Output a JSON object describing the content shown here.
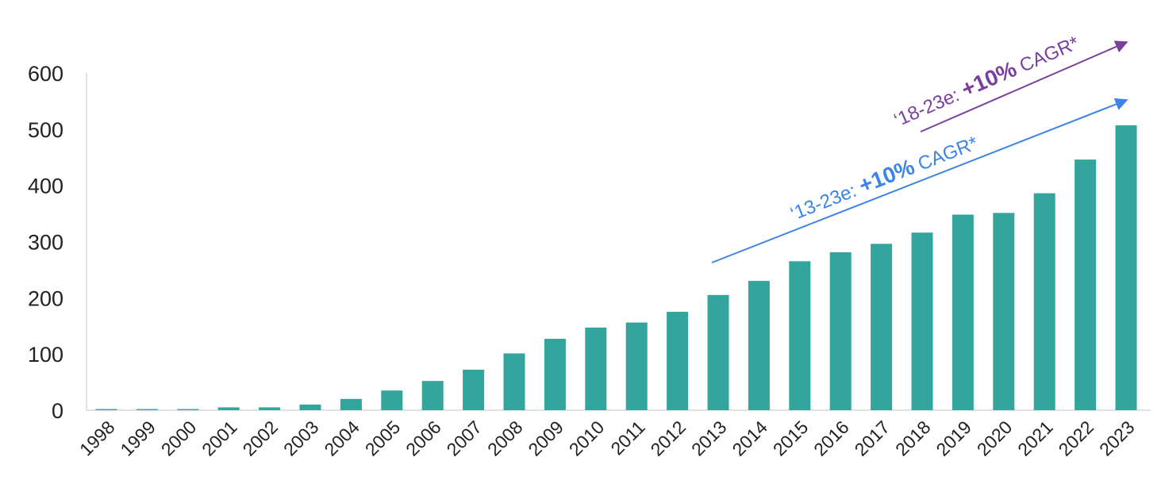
{
  "chart_data": {
    "type": "bar",
    "categories": [
      "1998",
      "1999",
      "2000",
      "2001",
      "2002",
      "2003",
      "2004",
      "2005",
      "2006",
      "2007",
      "2008",
      "2009",
      "2010",
      "2011",
      "2012",
      "2013",
      "2014",
      "2015",
      "2016",
      "2017",
      "2018",
      "2019",
      "2020",
      "2021",
      "2022",
      "2023"
    ],
    "values": [
      2,
      2,
      2,
      5,
      5,
      10,
      20,
      35,
      52,
      72,
      101,
      127,
      147,
      156,
      175,
      205,
      230,
      265,
      281,
      296,
      316,
      348,
      351,
      386,
      446,
      507
    ],
    "ylim": [
      0,
      600
    ],
    "yticks": [
      "0",
      "100",
      "200",
      "300",
      "400",
      "500",
      "600"
    ],
    "grid": false,
    "bar_color": "#34a59c",
    "annotations": [
      {
        "prefix": "‘13-23e: ",
        "bold": "+10%",
        "suffix": " CAGR*",
        "color": "#3d84e6",
        "from": "2013",
        "to": "2023"
      },
      {
        "prefix": "‘18-23e: ",
        "bold": "+10%",
        "suffix": " CAGR*",
        "color": "#7b3fa0",
        "from": "2018",
        "to": "2023"
      }
    ]
  }
}
